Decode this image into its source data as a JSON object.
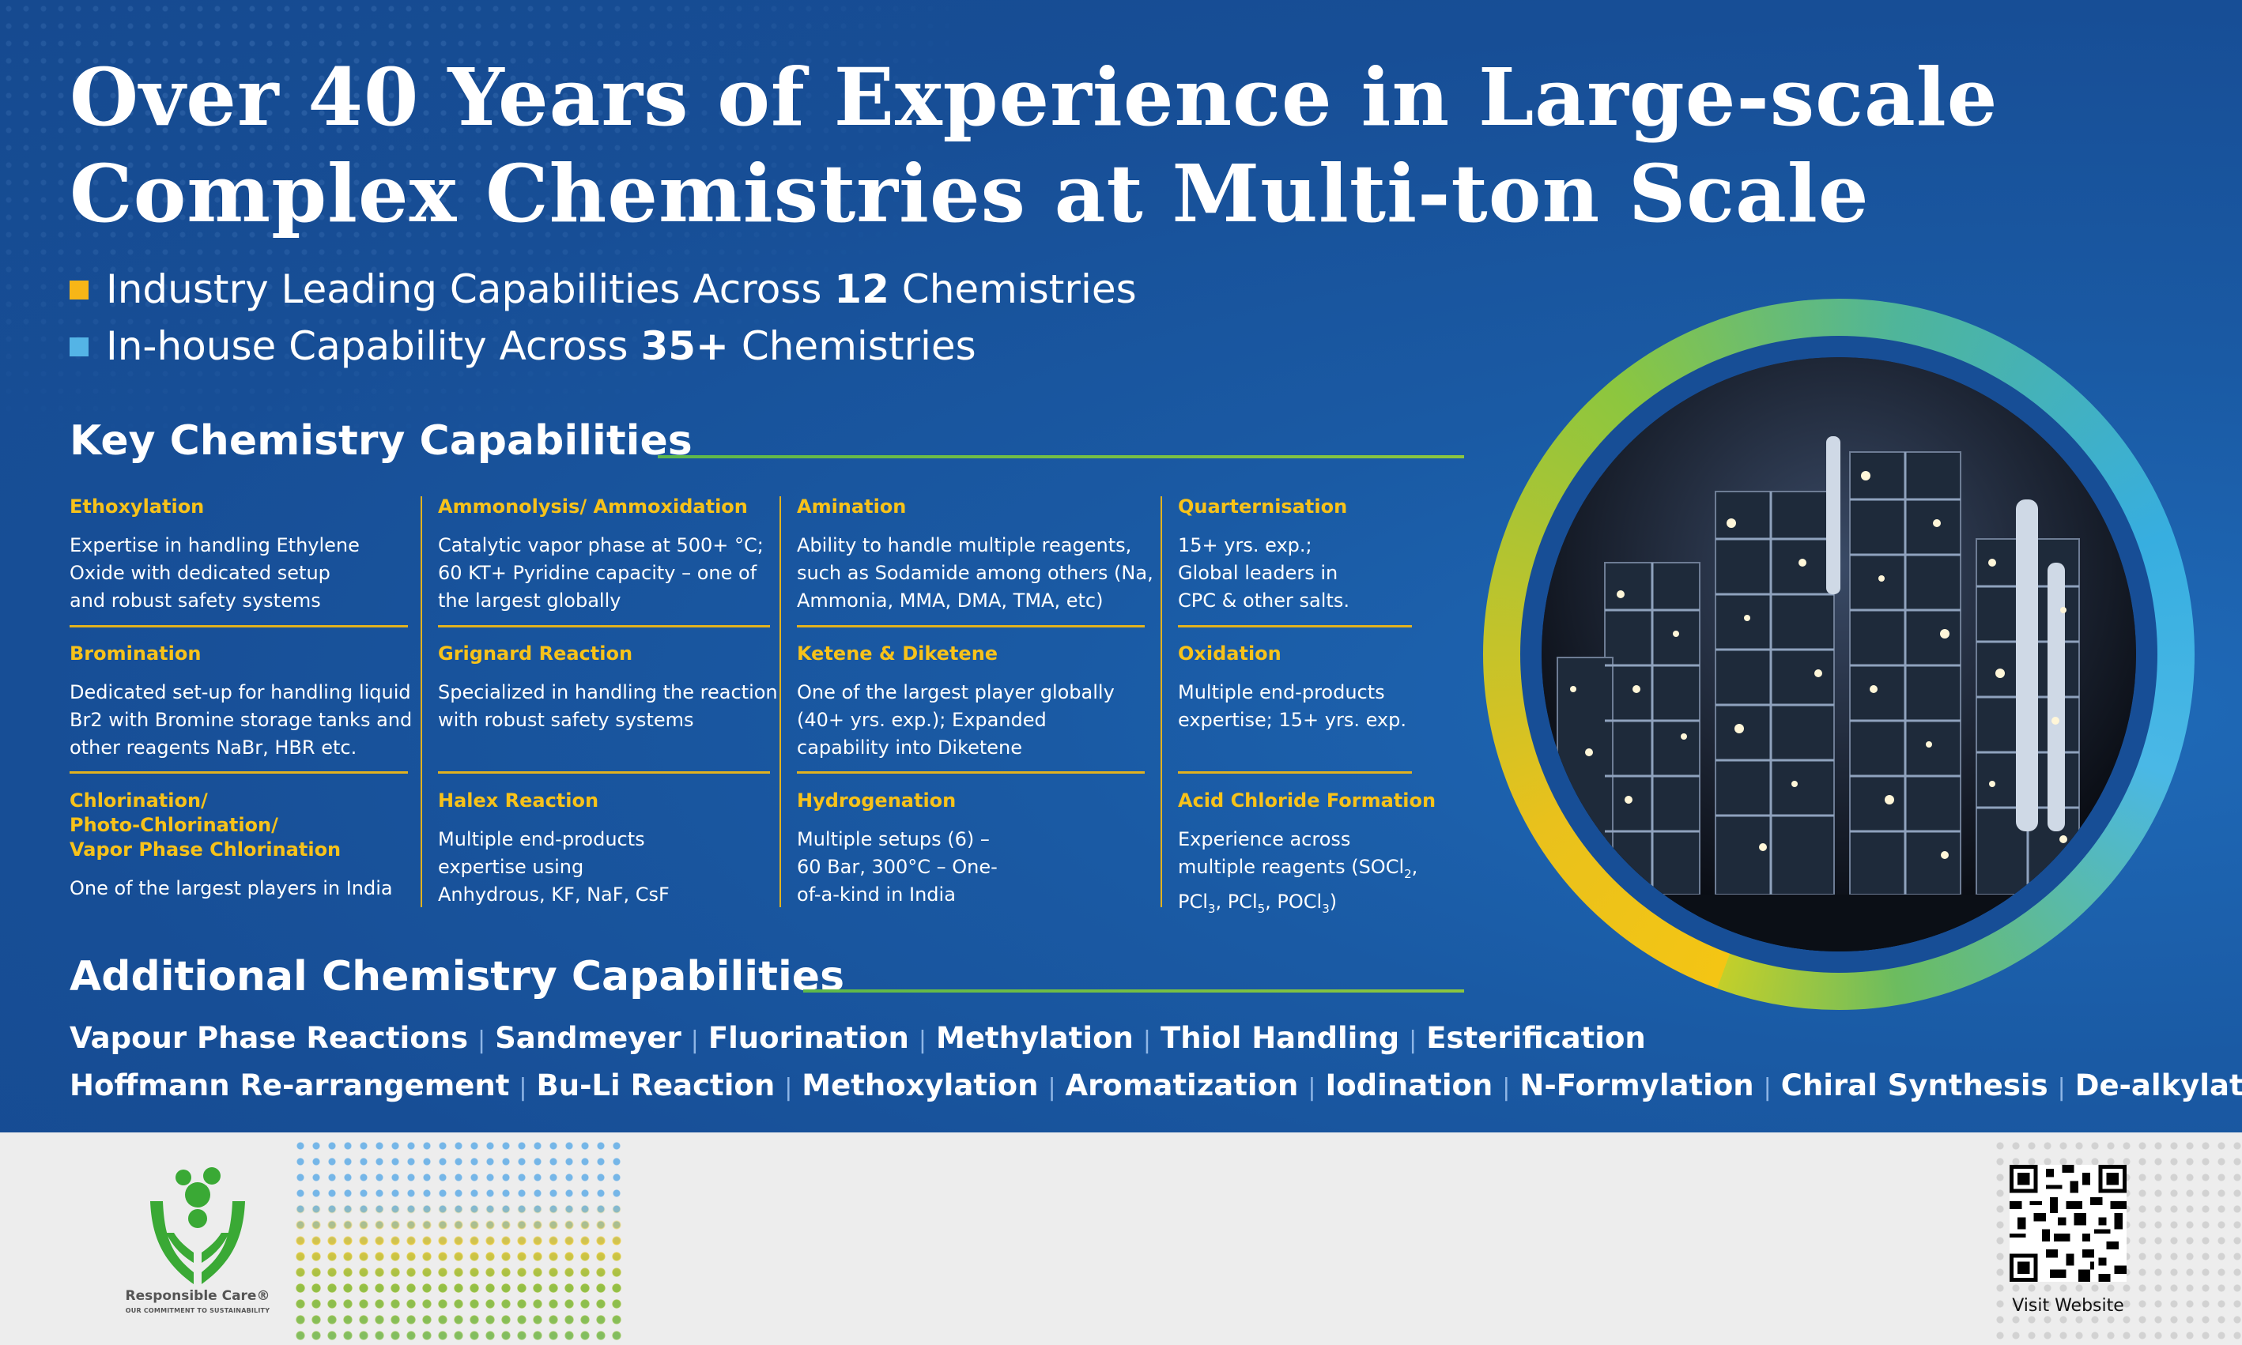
{
  "headline": {
    "line1": "Over 40 Years of Experience in Large-scale",
    "line2": "Complex Chemistries at Multi-ton Scale"
  },
  "highlights": [
    {
      "pre": "Industry Leading Capabilities Across ",
      "strong": "12",
      "post": " Chemistries",
      "bullet_color": "#f7b617"
    },
    {
      "pre": "In-house Capability Across ",
      "strong": "35+",
      "post": " Chemistries",
      "bullet_color": "#54b4e6"
    }
  ],
  "key_section": {
    "title": "Key Chemistry Capabilities"
  },
  "capabilities": [
    {
      "title": "Ethoxylation",
      "desc": "Expertise in handling Ethylene Oxide with dedicated setup and robust safety systems"
    },
    {
      "title": "Ammonolysis/ Ammoxidation",
      "desc": "Catalytic vapor phase at 500+ °C; 60 KT+ Pyridine capacity – one of the largest globally"
    },
    {
      "title": "Amination",
      "desc": "Ability to handle multiple reagents, such as Sodamide among others (Na, Ammonia, MMA, DMA, TMA, etc)"
    },
    {
      "title": "Quarternisation",
      "desc": "15+ yrs. exp.; Global leaders in CPC  & other salts."
    },
    {
      "title": "Bromination",
      "desc": "Dedicated set-up for handling liquid Br2 with Bromine storage tanks and other reagents NaBr, HBR etc."
    },
    {
      "title": "Grignard Reaction",
      "desc": "Specialized in handling the reaction with robust safety systems"
    },
    {
      "title": "Ketene & Diketene",
      "desc": "One of the largest player globally (40+ yrs. exp.); Expanded capability into Diketene"
    },
    {
      "title": "Oxidation",
      "desc": "Multiple end-products expertise; 15+ yrs. exp."
    },
    {
      "title": "Chlorination/\nPhoto-Chlorination/\nVapor Phase Chlorination",
      "desc": "One of the largest players in India"
    },
    {
      "title": "Halex Reaction",
      "desc": "Multiple end-products expertise using Anhydrous, KF, NaF, CsF"
    },
    {
      "title": "Hydrogenation",
      "desc": "Multiple setups (6) – 60 Bar, 300°C – One-of-a-kind in India"
    },
    {
      "title": "Acid Chloride Formation",
      "desc_pre": "Experience across multiple reagents (SOCl",
      "sub1": "2",
      "mid1": ", PCl",
      "sub2": "3",
      "mid2": ", PCl",
      "sub3": "5",
      "mid3": ", POCl",
      "sub4": "3",
      "desc_post": ")"
    }
  ],
  "additional_section": {
    "title": "Additional Chemistry Capabilities"
  },
  "additional_row1": [
    "Vapour Phase Reactions",
    "Sandmeyer",
    "Fluorination",
    "Methylation",
    "Thiol Handling",
    "Esterification"
  ],
  "additional_row2": [
    "Hoffmann Re-arrangement",
    "Bu-Li Reaction",
    "Methoxylation",
    "Aromatization",
    "Iodination",
    "N-Formylation",
    "Chiral Synthesis",
    "De-alkylation"
  ],
  "footer": {
    "logo_text": "Responsible Care®",
    "logo_subtext": "OUR COMMITMENT TO SUSTAINABILITY",
    "qr_label": "Visit Website"
  }
}
